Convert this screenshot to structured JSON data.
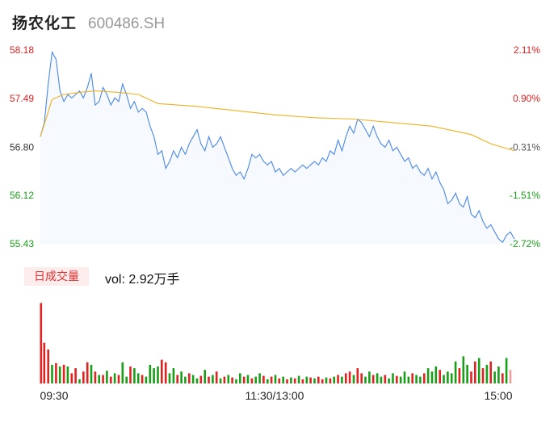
{
  "stock": {
    "name": "扬农化工",
    "code": "600486.SH"
  },
  "volume_panel": {
    "tag": "日成交量",
    "vol_text": "vol: 2.92万手"
  },
  "colors": {
    "up": "#e02222",
    "down": "#1a9e1a",
    "price_line": "#4a88e8",
    "avg_line": "#f0b020",
    "area_fill": "#f6f9fe"
  },
  "chart_data": {
    "type": "line",
    "title": "",
    "price_axis": {
      "ylim": [
        55.43,
        58.18
      ],
      "ticks": [
        "58.18",
        "57.49",
        "56.80",
        "56.12",
        "55.43"
      ],
      "tick_values": [
        58.18,
        57.49,
        56.8,
        56.12,
        55.43
      ]
    },
    "percent_axis": {
      "ticks": [
        "2.11%",
        "0.90%",
        "-0.31%",
        "-1.51%",
        "-2.72%"
      ]
    },
    "x_ticks": [
      "09:30",
      "11:30/13:00",
      "15:00"
    ],
    "series": [
      {
        "name": "price",
        "points": [
          [
            0,
            56.95
          ],
          [
            1,
            57.15
          ],
          [
            2,
            57.7
          ],
          [
            3,
            58.15
          ],
          [
            4,
            58.05
          ],
          [
            5,
            57.6
          ],
          [
            6,
            57.45
          ],
          [
            7,
            57.55
          ],
          [
            8,
            57.5
          ],
          [
            9,
            57.55
          ],
          [
            10,
            57.6
          ],
          [
            11,
            57.5
          ],
          [
            12,
            57.65
          ],
          [
            13,
            57.85
          ],
          [
            14,
            57.4
          ],
          [
            15,
            57.45
          ],
          [
            16,
            57.65
          ],
          [
            17,
            57.55
          ],
          [
            18,
            57.4
          ],
          [
            19,
            57.5
          ],
          [
            20,
            57.45
          ],
          [
            21,
            57.7
          ],
          [
            22,
            57.55
          ],
          [
            23,
            57.35
          ],
          [
            24,
            57.45
          ],
          [
            25,
            57.3
          ],
          [
            26,
            57.35
          ],
          [
            27,
            57.3
          ],
          [
            28,
            57.1
          ],
          [
            29,
            56.95
          ],
          [
            30,
            56.7
          ],
          [
            31,
            56.75
          ],
          [
            32,
            56.5
          ],
          [
            33,
            56.6
          ],
          [
            34,
            56.75
          ],
          [
            35,
            56.65
          ],
          [
            36,
            56.8
          ],
          [
            37,
            56.7
          ],
          [
            38,
            56.85
          ],
          [
            39,
            56.95
          ],
          [
            40,
            57.05
          ],
          [
            41,
            56.85
          ],
          [
            42,
            56.75
          ],
          [
            43,
            56.95
          ],
          [
            44,
            56.8
          ],
          [
            45,
            56.85
          ],
          [
            46,
            56.95
          ],
          [
            47,
            56.8
          ],
          [
            48,
            56.65
          ],
          [
            49,
            56.5
          ],
          [
            50,
            56.4
          ],
          [
            51,
            56.45
          ],
          [
            52,
            56.35
          ],
          [
            53,
            56.5
          ],
          [
            54,
            56.7
          ],
          [
            55,
            56.65
          ],
          [
            56,
            56.7
          ],
          [
            57,
            56.6
          ],
          [
            58,
            56.55
          ],
          [
            59,
            56.6
          ],
          [
            60,
            56.45
          ],
          [
            61,
            56.5
          ],
          [
            62,
            56.4
          ],
          [
            63,
            56.45
          ],
          [
            64,
            56.5
          ],
          [
            65,
            56.45
          ],
          [
            66,
            56.5
          ],
          [
            67,
            56.55
          ],
          [
            68,
            56.5
          ],
          [
            69,
            56.55
          ],
          [
            70,
            56.6
          ],
          [
            71,
            56.55
          ],
          [
            72,
            56.65
          ],
          [
            73,
            56.6
          ],
          [
            74,
            56.75
          ],
          [
            75,
            56.7
          ],
          [
            76,
            56.9
          ],
          [
            77,
            56.75
          ],
          [
            78,
            56.95
          ],
          [
            79,
            57.1
          ],
          [
            80,
            57.0
          ],
          [
            81,
            57.2
          ],
          [
            82,
            57.15
          ],
          [
            83,
            57.05
          ],
          [
            84,
            56.95
          ],
          [
            85,
            57.1
          ],
          [
            86,
            56.95
          ],
          [
            87,
            56.85
          ],
          [
            88,
            56.8
          ],
          [
            89,
            56.9
          ],
          [
            90,
            56.75
          ],
          [
            91,
            56.8
          ],
          [
            92,
            56.7
          ],
          [
            93,
            56.6
          ],
          [
            94,
            56.65
          ],
          [
            95,
            56.5
          ],
          [
            96,
            56.55
          ],
          [
            97,
            56.45
          ],
          [
            98,
            56.4
          ],
          [
            99,
            56.5
          ],
          [
            100,
            56.35
          ],
          [
            101,
            56.45
          ],
          [
            102,
            56.3
          ],
          [
            103,
            56.2
          ],
          [
            104,
            56.0
          ],
          [
            105,
            56.05
          ],
          [
            106,
            56.15
          ],
          [
            107,
            56.0
          ],
          [
            108,
            55.95
          ],
          [
            109,
            56.1
          ],
          [
            110,
            55.85
          ],
          [
            111,
            55.8
          ],
          [
            112,
            55.9
          ],
          [
            113,
            55.75
          ],
          [
            114,
            55.65
          ],
          [
            115,
            55.7
          ],
          [
            116,
            55.6
          ],
          [
            117,
            55.5
          ],
          [
            118,
            55.45
          ],
          [
            119,
            55.55
          ],
          [
            120,
            55.6
          ],
          [
            121,
            55.5
          ]
        ]
      },
      {
        "name": "average",
        "points": [
          [
            0,
            56.95
          ],
          [
            2,
            57.3
          ],
          [
            3,
            57.48
          ],
          [
            6,
            57.55
          ],
          [
            10,
            57.58
          ],
          [
            14,
            57.6
          ],
          [
            20,
            57.58
          ],
          [
            25,
            57.55
          ],
          [
            30,
            57.42
          ],
          [
            40,
            57.38
          ],
          [
            50,
            57.32
          ],
          [
            60,
            57.26
          ],
          [
            70,
            57.22
          ],
          [
            80,
            57.2
          ],
          [
            90,
            57.15
          ],
          [
            100,
            57.1
          ],
          [
            110,
            56.98
          ],
          [
            115,
            56.85
          ],
          [
            121,
            56.75
          ]
        ]
      }
    ],
    "volume": {
      "slots": 121,
      "values": [
        95,
        48,
        40,
        22,
        24,
        20,
        22,
        20,
        12,
        18,
        5,
        14,
        25,
        22,
        14,
        10,
        10,
        15,
        8,
        12,
        10,
        25,
        8,
        20,
        18,
        12,
        10,
        8,
        22,
        18,
        20,
        28,
        25,
        12,
        18,
        10,
        14,
        8,
        12,
        10,
        6,
        9,
        16,
        8,
        10,
        14,
        6,
        8,
        10,
        7,
        5,
        12,
        8,
        10,
        6,
        8,
        12,
        9,
        5,
        8,
        10,
        6,
        8,
        5,
        7,
        6,
        9,
        5,
        8,
        7,
        6,
        8,
        5,
        7,
        6,
        8,
        10,
        8,
        12,
        14,
        10,
        18,
        12,
        8,
        14,
        10,
        12,
        8,
        10,
        6,
        12,
        9,
        8,
        14,
        8,
        12,
        10,
        8,
        12,
        18,
        14,
        20,
        16,
        10,
        14,
        12,
        26,
        18,
        32,
        22,
        14,
        26,
        30,
        18,
        22,
        26,
        14,
        20,
        12,
        30,
        16
      ],
      "directions": [
        "u",
        "u",
        "u",
        "d",
        "u",
        "d",
        "u",
        "d",
        "u",
        "u",
        "d",
        "u",
        "u",
        "d",
        "u",
        "d",
        "u",
        "d",
        "u",
        "d",
        "u",
        "d",
        "d",
        "u",
        "d",
        "d",
        "u",
        "d",
        "d",
        "d",
        "d",
        "u",
        "u",
        "d",
        "d",
        "u",
        "d",
        "d",
        "u",
        "d",
        "d",
        "u",
        "d",
        "u",
        "d",
        "u",
        "d",
        "u",
        "d",
        "u",
        "d",
        "d",
        "u",
        "d",
        "u",
        "d",
        "d",
        "u",
        "d",
        "u",
        "d",
        "u",
        "d",
        "u",
        "d",
        "u",
        "d",
        "u",
        "d",
        "u",
        "d",
        "u",
        "u",
        "d",
        "u",
        "d",
        "u",
        "d",
        "u",
        "u",
        "d",
        "u",
        "u",
        "d",
        "d",
        "u",
        "d",
        "d",
        "u",
        "d",
        "d",
        "u",
        "d",
        "d",
        "d",
        "u",
        "d",
        "d",
        "u",
        "d",
        "d",
        "d",
        "u",
        "d",
        "d",
        "d",
        "d",
        "u",
        "d",
        "d",
        "u",
        "u",
        "d",
        "u",
        "d",
        "u",
        "d",
        "d",
        "u",
        "d",
        "u"
      ],
      "ymax": 100
    }
  }
}
